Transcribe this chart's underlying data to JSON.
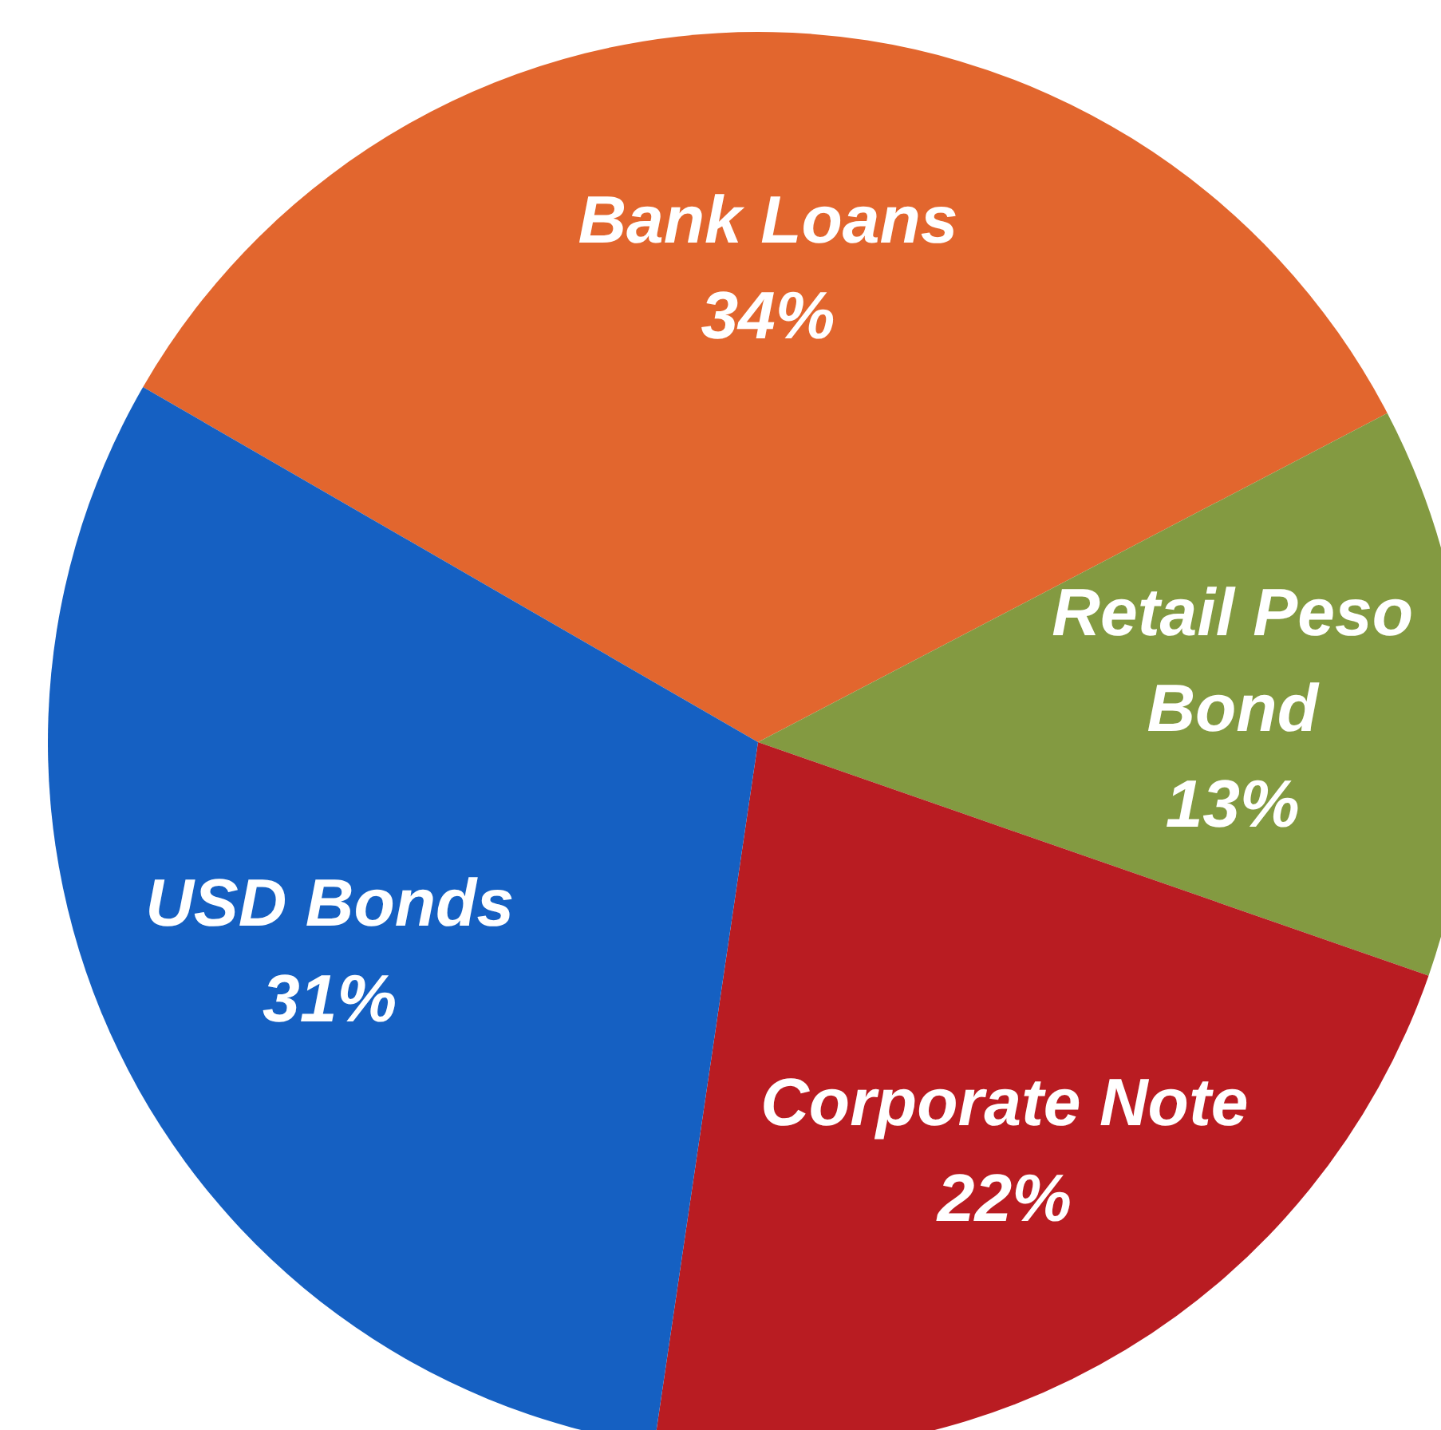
{
  "chart_data": {
    "type": "pie",
    "categories": [
      "Bank Loans",
      "Retail Peso Bond",
      "Corporate Note",
      "USD Bonds"
    ],
    "values": [
      34,
      13,
      22,
      31
    ],
    "value_labels": [
      "34%",
      "13%",
      "22%",
      "31%"
    ],
    "colors": [
      "#e2662e",
      "#839a41",
      "#b91c22",
      "#1560c2"
    ],
    "legend": false
  }
}
